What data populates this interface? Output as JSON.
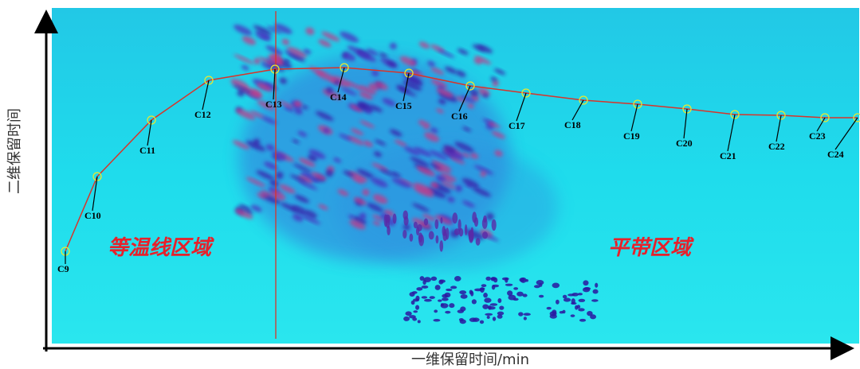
{
  "axes": {
    "x_label": "一维保留时间/min",
    "y_label": "二维保留时间"
  },
  "regions": [
    "等温线区域",
    "平带区域"
  ],
  "peaks": [
    "C9",
    "C10",
    "C11",
    "C12",
    "C13",
    "C14",
    "C15",
    "C16",
    "C17",
    "C18",
    "C19",
    "C20",
    "C21",
    "C22",
    "C23",
    "C24"
  ]
}
